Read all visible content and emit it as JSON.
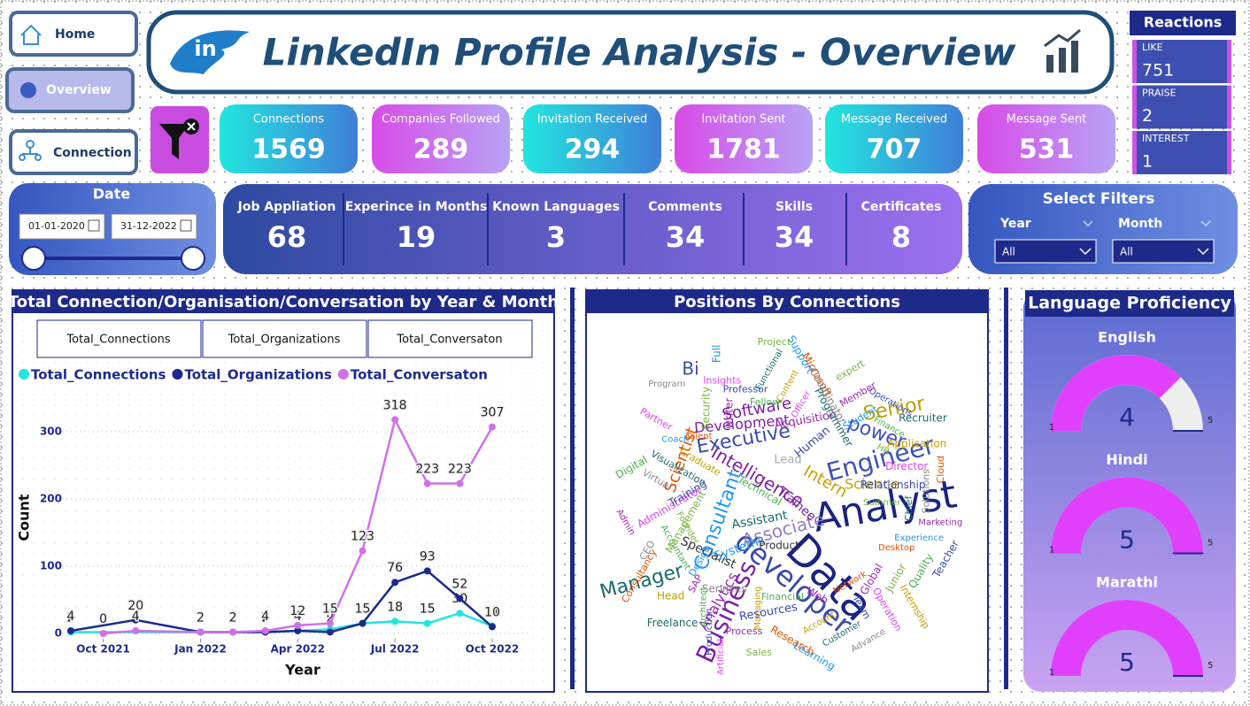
{
  "nav": [
    "Home",
    "Overview",
    "Connection"
  ],
  "header": {
    "title": "LinkedIn Profile Analysis - Overview",
    "logo": "in"
  },
  "kpis": [
    {
      "label": "Connections",
      "value": 1569
    },
    {
      "label": "Companies Followed",
      "value": 289
    },
    {
      "label": "Invitation Received",
      "value": 294
    },
    {
      "label": "Invitation Sent",
      "value": 1781
    },
    {
      "label": "Message Received",
      "value": 707
    },
    {
      "label": "Message Sent",
      "value": 531
    }
  ],
  "reactions": {
    "title": "Reactions",
    "items": [
      {
        "label": "LIKE",
        "value": 751
      },
      {
        "label": "PRAISE",
        "value": 2
      },
      {
        "label": "INTEREST",
        "value": 1
      }
    ]
  },
  "date_filter": {
    "title": "Date",
    "start": "01-01-2020",
    "end": "31-12-2022"
  },
  "stats": [
    {
      "label": "Job Appliation",
      "value": 68
    },
    {
      "label": "Experince in Months",
      "value": 19
    },
    {
      "label": "Known Languages",
      "value": 3
    },
    {
      "label": "Comments",
      "value": 34
    },
    {
      "label": "Skills",
      "value": 34
    },
    {
      "label": "Certificates",
      "value": 8
    }
  ],
  "filters": {
    "title": "Select Filters",
    "fields": [
      {
        "label": "Year",
        "value": "All"
      },
      {
        "label": "Month",
        "value": "All"
      }
    ]
  },
  "chart_data": {
    "type": "line",
    "title": "Total Connection/Organisation/Conversation by Year & Month",
    "buttons": [
      "Total_Connections",
      "Total_Organizations",
      "Total_Conversaton"
    ],
    "x_label": "Year",
    "y_label": "Count",
    "xlim": [
      "2021-09",
      "2022-10"
    ],
    "xticks": [
      {
        "value": "2021-10",
        "label": "Oct 2021"
      },
      {
        "value": "2022-01",
        "label": "Jan 2022"
      },
      {
        "value": "2022-04",
        "label": "Apr 2022"
      },
      {
        "value": "2022-07",
        "label": "Jul 2022"
      },
      {
        "value": "2022-10",
        "label": "Oct 2022"
      }
    ],
    "ylim": [
      0,
      350
    ],
    "yticks": [
      0,
      100,
      200,
      300
    ],
    "grid": true,
    "series": [
      {
        "name": "Total_Connections",
        "color": "#22e3e0",
        "x": [
          "2021-09",
          "2022-01",
          "2022-02",
          "2022-03",
          "2022-04",
          "2022-05",
          "2022-06",
          "2022-07",
          "2022-08",
          "2022-09",
          "2022-10"
        ],
        "values": [
          2,
          2,
          2,
          2,
          4,
          6,
          15,
          18,
          15,
          30,
          11
        ]
      },
      {
        "name": "Total_Organizations",
        "color": "#1a2a8c",
        "x": [
          "2021-09",
          "2021-11",
          "2022-01",
          "2022-02",
          "2022-03",
          "2022-04",
          "2022-05",
          "2022-06",
          "2022-07",
          "2022-08",
          "2022-09",
          "2022-10"
        ],
        "values": [
          4,
          20,
          2,
          2,
          2,
          4,
          2,
          15,
          76,
          93,
          52,
          10
        ]
      },
      {
        "name": "Total_Conversaton",
        "color": "#d070e8",
        "x": [
          "2021-10",
          "2021-11",
          "2022-01",
          "2022-02",
          "2022-03",
          "2022-04",
          "2022-05",
          "2022-06",
          "2022-07",
          "2022-08",
          "2022-09",
          "2022-10"
        ],
        "values": [
          0,
          4,
          2,
          2,
          4,
          12,
          15,
          123,
          318,
          223,
          223,
          307
        ]
      }
    ]
  },
  "wordcloud": {
    "title": "Positions By Connections",
    "words": [
      "Analyst",
      "Data",
      "developer",
      "Engineer",
      "Business",
      "Manager",
      "Senior",
      "Consultant",
      "Associate",
      "Intelligence",
      "Executive",
      "power",
      "Bi",
      "Software",
      "Scientist",
      "Intern",
      "Science",
      "Development",
      "Analytics",
      "Specialist",
      "Assistant",
      "Systems",
      "Resources",
      "Acquisition",
      "Human",
      "Technical",
      "Management",
      "Trainee",
      "Product",
      "Lead",
      "Summer",
      "SAP",
      "Support",
      "Network",
      "Virtual",
      "Recruiter",
      "Managing",
      "Insights",
      "Teacher",
      "Accountant",
      "expert",
      "Web",
      "Coach",
      "Cloud",
      "Services",
      "Functional",
      "Internship",
      "Administrator",
      "Operations",
      "Financial",
      "Security",
      "Marketing",
      "Design",
      "Microsoft",
      "Advance",
      "Visualization",
      "Application",
      "Artificial",
      "Professor",
      "Quality",
      "Founder",
      "Member",
      "Learning",
      "Talent",
      "Solutions",
      "Freelance",
      "Content",
      "Operation",
      "Training",
      "Finance",
      "Sales",
      "writer",
      "Experience",
      "Consultancy",
      "Coordinator",
      "Customer",
      "Graduate",
      "Director",
      "Production",
      "Fellow",
      "Junior",
      "Admin",
      "Student",
      "Research",
      "Program",
      "Chief",
      "Head",
      "Officer",
      "Team",
      "Digital",
      "HR",
      "Process",
      "Full",
      "Desktop",
      "CEO",
      "Programmer",
      "Account",
      "Partner",
      "Relationship",
      "Architect",
      "Project",
      "Global"
    ]
  },
  "language": {
    "title": "Language Proficiency",
    "gauges": [
      {
        "name": "English",
        "value": 4,
        "min": 1,
        "max": 5
      },
      {
        "name": "Hindi",
        "value": 5,
        "min": 1,
        "max": 5
      },
      {
        "name": "Marathi",
        "value": 5,
        "min": 1,
        "max": 5
      }
    ]
  }
}
